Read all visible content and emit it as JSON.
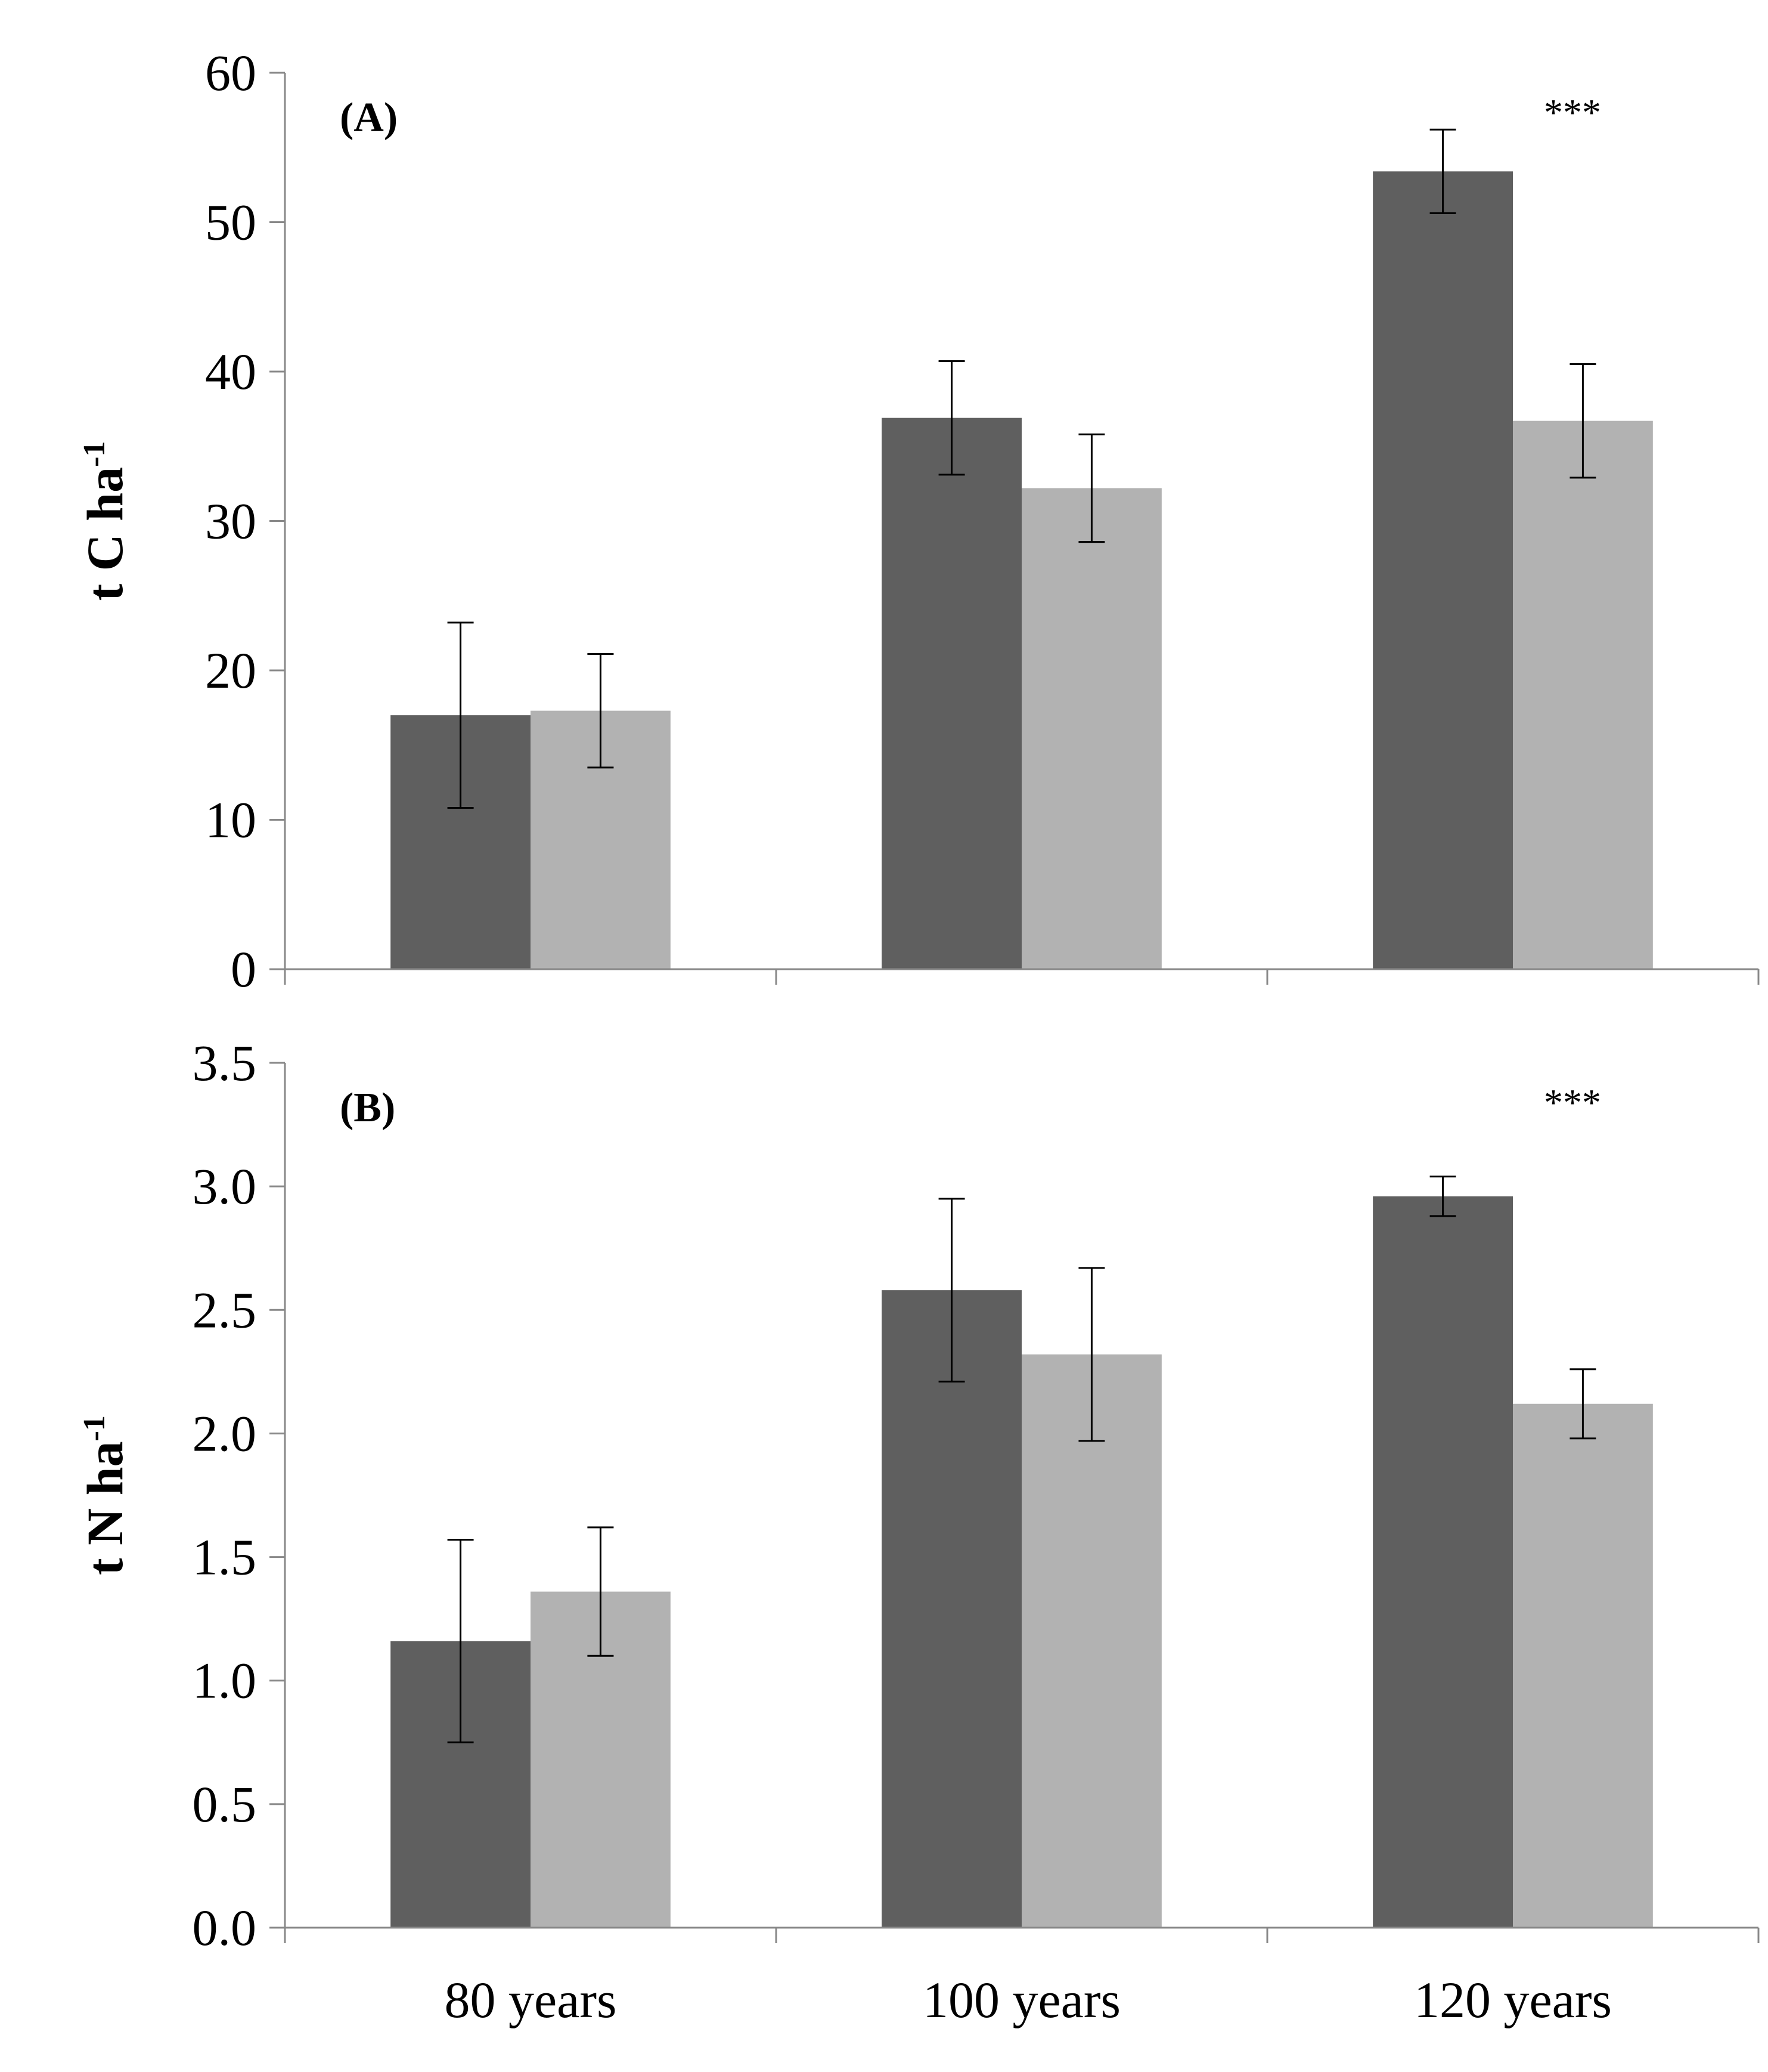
{
  "colors": {
    "series_dark": "#5f5f5f",
    "series_light": "#b2b2b2",
    "axis": "#888888",
    "error_bar": "#000000"
  },
  "chart_data": [
    {
      "type": "bar",
      "panel": "(A)",
      "categories": [
        "80 years",
        "100 years",
        "120 years"
      ],
      "series": [
        {
          "name": "dark",
          "values": [
            17.0,
            36.9,
            53.4
          ],
          "errors": [
            6.2,
            3.8,
            2.8
          ]
        },
        {
          "name": "light",
          "values": [
            17.3,
            32.2,
            36.7
          ],
          "errors": [
            3.8,
            3.6,
            3.8
          ]
        }
      ],
      "ylabel": "t C ha",
      "ylabel_sup": "-1",
      "ylim": [
        0,
        60
      ],
      "yticks": [
        "0",
        "10",
        "20",
        "30",
        "40",
        "50",
        "60"
      ],
      "annotations": [
        {
          "category_index": 2,
          "text": "***"
        }
      ]
    },
    {
      "type": "bar",
      "panel": "(B)",
      "categories": [
        "80 years",
        "100 years",
        "120 years"
      ],
      "series": [
        {
          "name": "dark",
          "values": [
            1.16,
            2.58,
            2.96
          ],
          "errors": [
            0.41,
            0.37,
            0.08
          ]
        },
        {
          "name": "light",
          "values": [
            1.36,
            2.32,
            2.12
          ],
          "errors": [
            0.26,
            0.35,
            0.14
          ]
        }
      ],
      "ylabel": "t N ha",
      "ylabel_sup": "-1",
      "ylim": [
        0,
        3.5
      ],
      "yticks": [
        "0.0",
        "0.5",
        "1.0",
        "1.5",
        "2.0",
        "2.5",
        "3.0",
        "3.5"
      ],
      "annotations": [
        {
          "category_index": 2,
          "text": "***"
        }
      ]
    }
  ]
}
